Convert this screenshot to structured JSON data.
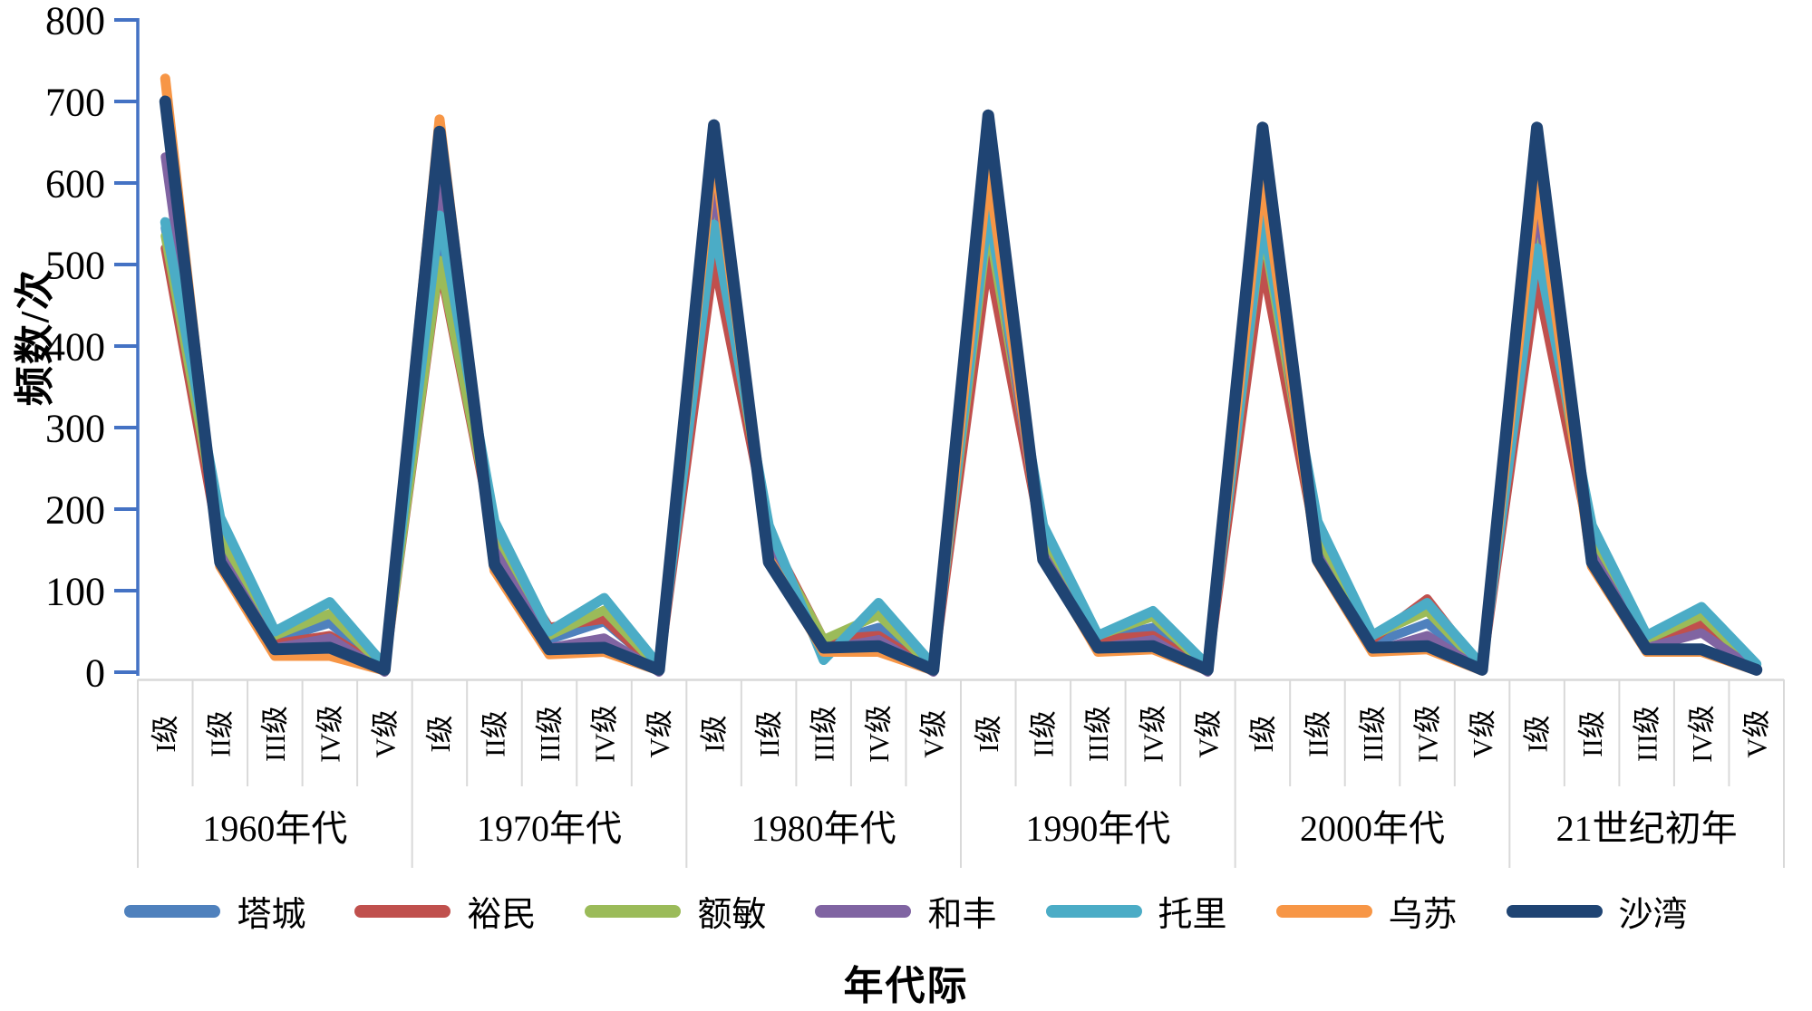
{
  "chart_data": {
    "type": "line",
    "title": "",
    "ylabel": "频数/次",
    "xlabel": "年代际",
    "ylim": [
      0,
      800
    ],
    "ytick_step": 100,
    "ytick_labels": [
      "0",
      "100",
      "200",
      "300",
      "400",
      "500",
      "600",
      "700",
      "800"
    ],
    "grid": "category-separators-below-axis-only",
    "legend_position": "bottom",
    "axis_color": "#4472C4",
    "grid_color": "#D9D9D9",
    "groups": [
      "1960年代",
      "1970年代",
      "1980年代",
      "1990年代",
      "2000年代",
      "21世纪初年"
    ],
    "levels": [
      "I级",
      "II级",
      "III级",
      "IV级",
      "V级"
    ],
    "categories": [
      "I级",
      "II级",
      "III级",
      "IV级",
      "V级",
      "I级",
      "II级",
      "III级",
      "IV级",
      "V级",
      "I级",
      "II级",
      "III级",
      "IV级",
      "V级",
      "I级",
      "II级",
      "III级",
      "IV级",
      "V级",
      "I级",
      "II级",
      "III级",
      "IV级",
      "V级",
      "I级",
      "II级",
      "III级",
      "IV级",
      "V级"
    ],
    "series": [
      {
        "name": "塔城",
        "color": "#4F81BD",
        "stroke_width": 10,
        "values": [
          545,
          160,
          40,
          60,
          5,
          540,
          155,
          40,
          62,
          5,
          545,
          160,
          35,
          55,
          5,
          545,
          155,
          40,
          55,
          5,
          540,
          150,
          35,
          60,
          5,
          565,
          150,
          35,
          55,
          5
        ]
      },
      {
        "name": "裕民",
        "color": "#C0504D",
        "stroke_width": 10,
        "values": [
          520,
          150,
          35,
          45,
          3,
          500,
          160,
          55,
          65,
          3,
          505,
          170,
          40,
          45,
          3,
          505,
          155,
          40,
          45,
          3,
          500,
          150,
          40,
          90,
          3,
          480,
          150,
          40,
          60,
          3
        ]
      },
      {
        "name": "额敏",
        "color": "#9BBB59",
        "stroke_width": 10,
        "values": [
          535,
          165,
          45,
          72,
          5,
          505,
          165,
          45,
          76,
          5,
          556,
          165,
          40,
          70,
          5,
          550,
          160,
          45,
          68,
          5,
          545,
          160,
          45,
          75,
          5,
          538,
          155,
          40,
          70,
          5
        ]
      },
      {
        "name": "和丰",
        "color": "#8064A2",
        "stroke_width": 10,
        "values": [
          632,
          145,
          30,
          42,
          0,
          600,
          150,
          30,
          42,
          0,
          602,
          150,
          28,
          40,
          0,
          578,
          145,
          30,
          40,
          0,
          580,
          145,
          25,
          45,
          2,
          575,
          145,
          30,
          48,
          2
        ]
      },
      {
        "name": "托里",
        "color": "#4BACC6",
        "stroke_width": 11,
        "values": [
          552,
          190,
          50,
          86,
          8,
          560,
          185,
          50,
          91,
          8,
          549,
          180,
          15,
          85,
          8,
          569,
          180,
          45,
          75,
          8,
          555,
          185,
          45,
          85,
          8,
          520,
          180,
          45,
          80,
          10
        ]
      },
      {
        "name": "乌苏",
        "color": "#F79646",
        "stroke_width": 11,
        "values": [
          728,
          130,
          20,
          20,
          2,
          678,
          125,
          22,
          25,
          2,
          640,
          140,
          25,
          25,
          2,
          617,
          140,
          25,
          28,
          2,
          610,
          135,
          25,
          28,
          2,
          605,
          130,
          25,
          25,
          2
        ]
      },
      {
        "name": "沙湾",
        "color": "#1F4473",
        "stroke_width": 13,
        "values": [
          700,
          135,
          28,
          30,
          3,
          663,
          132,
          28,
          30,
          3,
          671,
          135,
          30,
          32,
          3,
          683,
          138,
          30,
          32,
          3,
          668,
          138,
          30,
          32,
          3,
          668,
          135,
          28,
          28,
          3
        ]
      }
    ]
  }
}
